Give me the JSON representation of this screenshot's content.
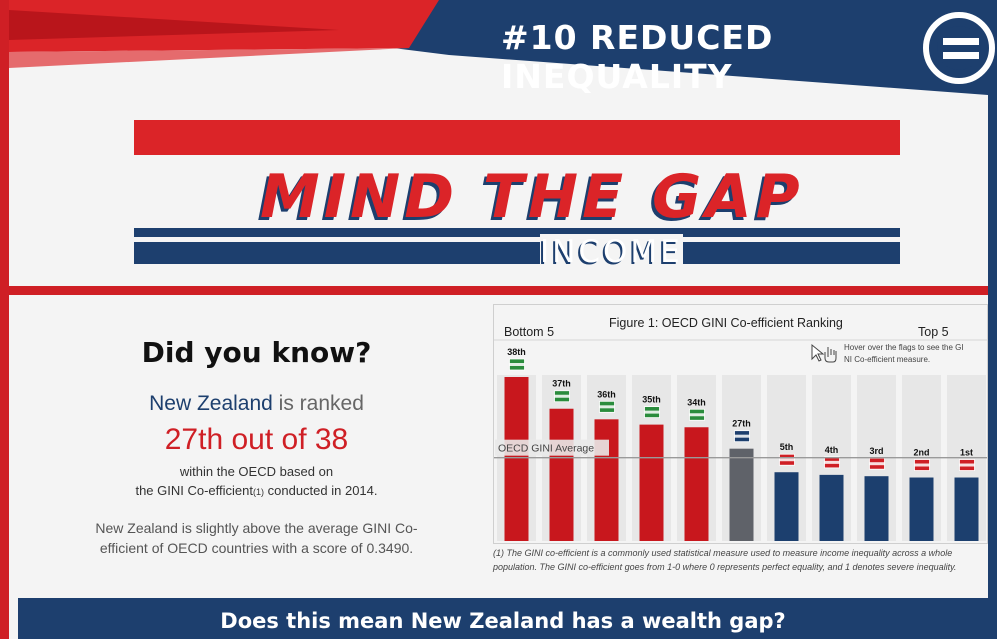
{
  "header": {
    "title": "#10 REDUCED INEQUALITY",
    "logo_icon": "equals-circle-icon"
  },
  "banner": {
    "title": "MIND THE GAP",
    "subtitle": "INCOME"
  },
  "did_you_know": {
    "heading": "Did you know?",
    "country": "New Zealand",
    "ranked_text": "is ranked",
    "rank": "27th out of 38",
    "within_line1": "within the OECD based on",
    "within_line2": "the GINI Co-efficient",
    "within_ref": "(1)",
    "within_line2_end": "conducted in 2014.",
    "above_text": "New Zealand is slightly above the average GINI Co-efficient of OECD countries with a score of 0.3490."
  },
  "chart_data": {
    "type": "bar",
    "title": "Figure 1: OECD GINI Co-efficient Ranking",
    "left_label": "Bottom 5",
    "right_label": "Top 5",
    "hint": "Hover over the flags to see the GINI Co-efficient measure.",
    "average_label": "OECD GINI Average",
    "categories": [
      "38th",
      "37th",
      "36th",
      "35th",
      "34th",
      "27th",
      "5th",
      "4th",
      "3rd",
      "2nd",
      "1st"
    ],
    "flags": [
      "south-africa-flag-icon",
      "costa-rica-flag-icon",
      "brazil-flag-icon",
      "mexico-flag-icon",
      "chile-flag-icon",
      "new-zealand-flag-icon",
      "norway-flag-icon",
      "denmark-flag-icon",
      "slovakia-flag-icon",
      "slovenia-flag-icon",
      "iceland-flag-icon"
    ],
    "values": [
      0.62,
      0.5,
      0.46,
      0.44,
      0.43,
      0.349,
      0.26,
      0.25,
      0.245,
      0.24,
      0.24
    ],
    "average": 0.315,
    "ylim": [
      0,
      0.62
    ],
    "colors": {
      "bottom": "#c8171d",
      "highlight": "#5f6269",
      "top": "#1c3f6e",
      "average_line": "#9a9a9a"
    }
  },
  "footnote": "(1) The GINI co-efficient is a commonly used statistical measure used to measure income inequality across a whole population. The GINI co-efficient goes from 1-0 where 0 represents perfect equality, and 1 denotes severe inequality.",
  "bottom_question": "Does this mean New Zealand has a wealth gap?"
}
